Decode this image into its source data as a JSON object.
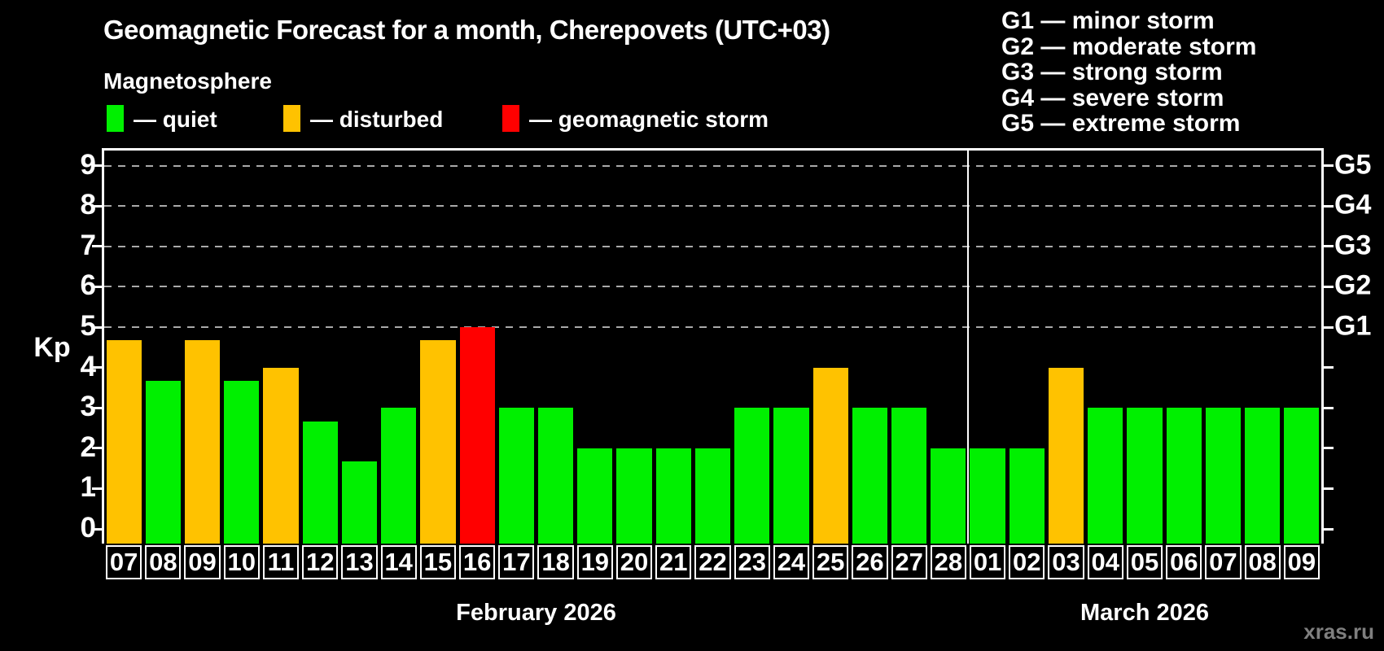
{
  "header": {
    "title": "Geomagnetic Forecast for a month, Cherepovets (UTC+03)",
    "subtitle": "Magnetosphere"
  },
  "legend": {
    "items": [
      {
        "key": "quiet",
        "label": "— quiet",
        "color": "#00f000"
      },
      {
        "key": "disturbed",
        "label": "— disturbed",
        "color": "#ffc200"
      },
      {
        "key": "storm",
        "label": "— geomagnetic storm",
        "color": "#ff0000"
      }
    ]
  },
  "g_legend": {
    "lines": [
      "G1 — minor storm",
      "G2 — moderate storm",
      "G3 — strong storm",
      "G4 — severe storm",
      "G5 — extreme storm"
    ]
  },
  "axes": {
    "y_label": "Kp",
    "y_ticks": [
      0,
      1,
      2,
      3,
      4,
      5,
      6,
      7,
      8,
      9
    ],
    "right_labels": [
      {
        "label": "G1",
        "kp": 5
      },
      {
        "label": "G2",
        "kp": 6
      },
      {
        "label": "G3",
        "kp": 7
      },
      {
        "label": "G4",
        "kp": 8
      },
      {
        "label": "G5",
        "kp": 9
      }
    ]
  },
  "months": [
    {
      "label": "February 2026",
      "start": 0,
      "count": 22
    },
    {
      "label": "March 2026",
      "start": 22,
      "count": 9
    }
  ],
  "watermark": "xras.ru",
  "chart_data": {
    "type": "bar",
    "title": "Geomagnetic Forecast for a month, Cherepovets (UTC+03)",
    "ylabel": "Kp",
    "ylim": [
      0,
      9
    ],
    "grid_kp": [
      5,
      6,
      7,
      8,
      9
    ],
    "grid_style": "dashed",
    "bars": [
      {
        "month": "February 2026",
        "day": "07",
        "kp": 4.67,
        "status": "disturbed"
      },
      {
        "month": "February 2026",
        "day": "08",
        "kp": 3.67,
        "status": "quiet"
      },
      {
        "month": "February 2026",
        "day": "09",
        "kp": 4.67,
        "status": "disturbed"
      },
      {
        "month": "February 2026",
        "day": "10",
        "kp": 3.67,
        "status": "quiet"
      },
      {
        "month": "February 2026",
        "day": "11",
        "kp": 4.0,
        "status": "disturbed"
      },
      {
        "month": "February 2026",
        "day": "12",
        "kp": 2.67,
        "status": "quiet"
      },
      {
        "month": "February 2026",
        "day": "13",
        "kp": 1.67,
        "status": "quiet"
      },
      {
        "month": "February 2026",
        "day": "14",
        "kp": 3.0,
        "status": "quiet"
      },
      {
        "month": "February 2026",
        "day": "15",
        "kp": 4.67,
        "status": "disturbed"
      },
      {
        "month": "February 2026",
        "day": "16",
        "kp": 5.0,
        "status": "storm"
      },
      {
        "month": "February 2026",
        "day": "17",
        "kp": 3.0,
        "status": "quiet"
      },
      {
        "month": "February 2026",
        "day": "18",
        "kp": 3.0,
        "status": "quiet"
      },
      {
        "month": "February 2026",
        "day": "19",
        "kp": 2.0,
        "status": "quiet"
      },
      {
        "month": "February 2026",
        "day": "20",
        "kp": 2.0,
        "status": "quiet"
      },
      {
        "month": "February 2026",
        "day": "21",
        "kp": 2.0,
        "status": "quiet"
      },
      {
        "month": "February 2026",
        "day": "22",
        "kp": 2.0,
        "status": "quiet"
      },
      {
        "month": "February 2026",
        "day": "23",
        "kp": 3.0,
        "status": "quiet"
      },
      {
        "month": "February 2026",
        "day": "24",
        "kp": 3.0,
        "status": "quiet"
      },
      {
        "month": "February 2026",
        "day": "25",
        "kp": 4.0,
        "status": "disturbed"
      },
      {
        "month": "February 2026",
        "day": "26",
        "kp": 3.0,
        "status": "quiet"
      },
      {
        "month": "February 2026",
        "day": "27",
        "kp": 3.0,
        "status": "quiet"
      },
      {
        "month": "February 2026",
        "day": "28",
        "kp": 2.0,
        "status": "quiet"
      },
      {
        "month": "March 2026",
        "day": "01",
        "kp": 2.0,
        "status": "quiet"
      },
      {
        "month": "March 2026",
        "day": "02",
        "kp": 2.0,
        "status": "quiet"
      },
      {
        "month": "March 2026",
        "day": "03",
        "kp": 4.0,
        "status": "disturbed"
      },
      {
        "month": "March 2026",
        "day": "04",
        "kp": 3.0,
        "status": "quiet"
      },
      {
        "month": "March 2026",
        "day": "05",
        "kp": 3.0,
        "status": "quiet"
      },
      {
        "month": "March 2026",
        "day": "06",
        "kp": 3.0,
        "status": "quiet"
      },
      {
        "month": "March 2026",
        "day": "07",
        "kp": 3.0,
        "status": "quiet"
      },
      {
        "month": "March 2026",
        "day": "08",
        "kp": 3.0,
        "status": "quiet"
      },
      {
        "month": "March 2026",
        "day": "09",
        "kp": 3.0,
        "status": "quiet"
      }
    ]
  }
}
